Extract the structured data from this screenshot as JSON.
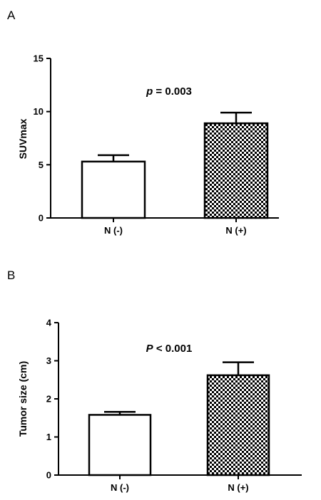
{
  "chart_data": [
    {
      "panel": "A",
      "type": "bar",
      "categories": [
        "N (-)",
        "N (+)"
      ],
      "values": [
        5.3,
        8.9
      ],
      "errors": [
        0.6,
        1.0
      ],
      "patterns": [
        "solid-white",
        "checkered"
      ],
      "ylabel": "SUVmax",
      "ylim": [
        0,
        15
      ],
      "yticks": [
        0,
        5,
        10,
        15
      ],
      "annotation": {
        "italic": "p",
        "text": " = 0.003"
      },
      "grid": false
    },
    {
      "panel": "B",
      "type": "bar",
      "categories": [
        "N (-)",
        "N (+)"
      ],
      "values": [
        1.58,
        2.62
      ],
      "errors": [
        0.08,
        0.34
      ],
      "patterns": [
        "solid-white",
        "checkered"
      ],
      "ylabel": "Tumor size (cm)",
      "ylim": [
        0,
        4
      ],
      "yticks": [
        0,
        1,
        2,
        3,
        4
      ],
      "annotation": {
        "italic": "P",
        "text": " < 0.001"
      },
      "grid": false
    }
  ]
}
